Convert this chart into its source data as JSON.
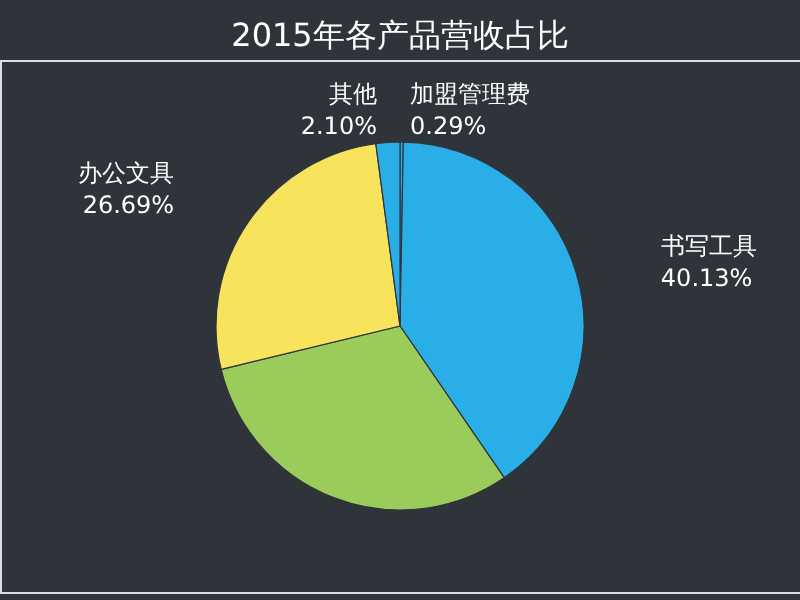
{
  "chart_data": {
    "type": "pie",
    "title": "2015年各产品营收占比",
    "categories": [
      "加盟管理费",
      "书写工具",
      null,
      "办公文具",
      "其他"
    ],
    "values": [
      0.29,
      40.13,
      30.79,
      26.69,
      2.1
    ],
    "colors": [
      "#29aee8",
      "#29aee8",
      "#9bcb5b",
      "#f8e45c",
      "#29aee8"
    ],
    "value_labels": [
      "0.29%",
      "40.13%",
      null,
      "26.69%",
      "2.10%"
    ]
  }
}
